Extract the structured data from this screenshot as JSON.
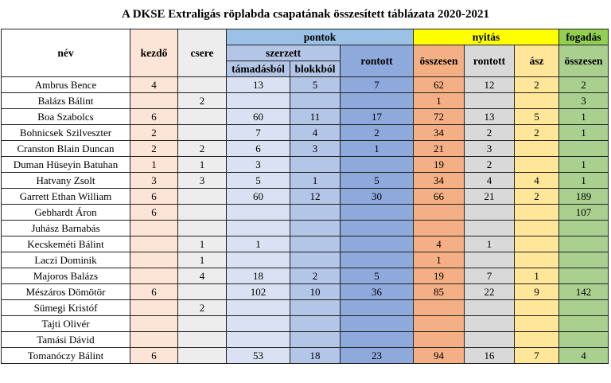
{
  "title": "A DKSE Extraligás röplabda csapatának összesített táblázata 2020-2021",
  "headers": {
    "nev": "név",
    "kezdo": "kezdő",
    "csere": "csere",
    "pontok": "pontok",
    "szerzett": "szerzett",
    "tamadasbol": "támadásból",
    "blokkbol": "blokkból",
    "rontott": "rontott",
    "nyitas": "nyitás",
    "osszesen": "összesen",
    "nyitas_rontott": "rontott",
    "asz": "ász",
    "fogadas": "fogadás",
    "fogadas_osszesen": "összesen"
  },
  "colors": {
    "kezdo": "#fce4d6",
    "csere": "#ededed",
    "tamadasbol": "#d9e1f2",
    "blokkbol": "#b4c6e7",
    "pont_rontott": "#8ea9db",
    "nyitas_osszesen": "#f4b084",
    "nyitas_rontott": "#d9d9d9",
    "asz": "#ffe699",
    "fogadas": "#a9d08e",
    "pontok_header": "#9bc2e6",
    "nyitas_header": "#ffff00",
    "fogadas_header": "#92d050"
  },
  "rows": [
    {
      "nev": "Ambrus Bence",
      "kezdo": "4",
      "csere": "",
      "tamadasbol": "13",
      "blokkbol": "5",
      "pont_rontott": "7",
      "nyitas_osszesen": "62",
      "nyitas_rontott": "12",
      "asz": "2",
      "fogadas_osszesen": "2"
    },
    {
      "nev": "Balázs Bálint",
      "kezdo": "",
      "csere": "2",
      "tamadasbol": "",
      "blokkbol": "",
      "pont_rontott": "",
      "nyitas_osszesen": "1",
      "nyitas_rontott": "",
      "asz": "",
      "fogadas_osszesen": "3"
    },
    {
      "nev": "Boa Szabolcs",
      "kezdo": "6",
      "csere": "",
      "tamadasbol": "60",
      "blokkbol": "11",
      "pont_rontott": "17",
      "nyitas_osszesen": "72",
      "nyitas_rontott": "13",
      "asz": "5",
      "fogadas_osszesen": "1"
    },
    {
      "nev": "Bohnicsek Szilveszter",
      "kezdo": "2",
      "csere": "",
      "tamadasbol": "7",
      "blokkbol": "4",
      "pont_rontott": "2",
      "nyitas_osszesen": "34",
      "nyitas_rontott": "2",
      "asz": "2",
      "fogadas_osszesen": "1"
    },
    {
      "nev": "Cranston Blain Duncan",
      "kezdo": "2",
      "csere": "2",
      "tamadasbol": "6",
      "blokkbol": "3",
      "pont_rontott": "1",
      "nyitas_osszesen": "21",
      "nyitas_rontott": "3",
      "asz": "",
      "fogadas_osszesen": ""
    },
    {
      "nev": "Duman Hüseyin Batuhan",
      "kezdo": "1",
      "csere": "1",
      "tamadasbol": "3",
      "blokkbol": "",
      "pont_rontott": "",
      "nyitas_osszesen": "19",
      "nyitas_rontott": "2",
      "asz": "",
      "fogadas_osszesen": "1"
    },
    {
      "nev": "Hatvany Zsolt",
      "kezdo": "3",
      "csere": "3",
      "tamadasbol": "5",
      "blokkbol": "1",
      "pont_rontott": "5",
      "nyitas_osszesen": "34",
      "nyitas_rontott": "4",
      "asz": "4",
      "fogadas_osszesen": "1"
    },
    {
      "nev": "Garrett Ethan William",
      "kezdo": "6",
      "csere": "",
      "tamadasbol": "60",
      "blokkbol": "12",
      "pont_rontott": "30",
      "nyitas_osszesen": "66",
      "nyitas_rontott": "21",
      "asz": "2",
      "fogadas_osszesen": "189"
    },
    {
      "nev": "Gebhardt Áron",
      "kezdo": "6",
      "csere": "",
      "tamadasbol": "",
      "blokkbol": "",
      "pont_rontott": "",
      "nyitas_osszesen": "",
      "nyitas_rontott": "",
      "asz": "",
      "fogadas_osszesen": "107"
    },
    {
      "nev": "Juhász Barnabás",
      "kezdo": "",
      "csere": "",
      "tamadasbol": "",
      "blokkbol": "",
      "pont_rontott": "",
      "nyitas_osszesen": "",
      "nyitas_rontott": "",
      "asz": "",
      "fogadas_osszesen": ""
    },
    {
      "nev": "Kecskeméti Bálint",
      "kezdo": "",
      "csere": "1",
      "tamadasbol": "1",
      "blokkbol": "",
      "pont_rontott": "",
      "nyitas_osszesen": "4",
      "nyitas_rontott": "1",
      "asz": "",
      "fogadas_osszesen": ""
    },
    {
      "nev": "Laczi Dominik",
      "kezdo": "",
      "csere": "1",
      "tamadasbol": "",
      "blokkbol": "",
      "pont_rontott": "",
      "nyitas_osszesen": "1",
      "nyitas_rontott": "",
      "asz": "",
      "fogadas_osszesen": ""
    },
    {
      "nev": "Majoros Balázs",
      "kezdo": "",
      "csere": "4",
      "tamadasbol": "18",
      "blokkbol": "2",
      "pont_rontott": "5",
      "nyitas_osszesen": "19",
      "nyitas_rontott": "7",
      "asz": "1",
      "fogadas_osszesen": ""
    },
    {
      "nev": "Mészáros Dömötör",
      "kezdo": "6",
      "csere": "",
      "tamadasbol": "102",
      "blokkbol": "10",
      "pont_rontott": "36",
      "nyitas_osszesen": "85",
      "nyitas_rontott": "22",
      "asz": "9",
      "fogadas_osszesen": "142"
    },
    {
      "nev": "Sümegi Kristóf",
      "kezdo": "",
      "csere": "2",
      "tamadasbol": "",
      "blokkbol": "",
      "pont_rontott": "",
      "nyitas_osszesen": "",
      "nyitas_rontott": "",
      "asz": "",
      "fogadas_osszesen": ""
    },
    {
      "nev": "Tajti Olivér",
      "kezdo": "",
      "csere": "",
      "tamadasbol": "",
      "blokkbol": "",
      "pont_rontott": "",
      "nyitas_osszesen": "",
      "nyitas_rontott": "",
      "asz": "",
      "fogadas_osszesen": ""
    },
    {
      "nev": "Tamási Dávid",
      "kezdo": "",
      "csere": "",
      "tamadasbol": "",
      "blokkbol": "",
      "pont_rontott": "",
      "nyitas_osszesen": "",
      "nyitas_rontott": "",
      "asz": "",
      "fogadas_osszesen": ""
    },
    {
      "nev": "Tomanóczy Bálint",
      "kezdo": "6",
      "csere": "",
      "tamadasbol": "53",
      "blokkbol": "18",
      "pont_rontott": "23",
      "nyitas_osszesen": "94",
      "nyitas_rontott": "16",
      "asz": "7",
      "fogadas_osszesen": "4"
    }
  ]
}
